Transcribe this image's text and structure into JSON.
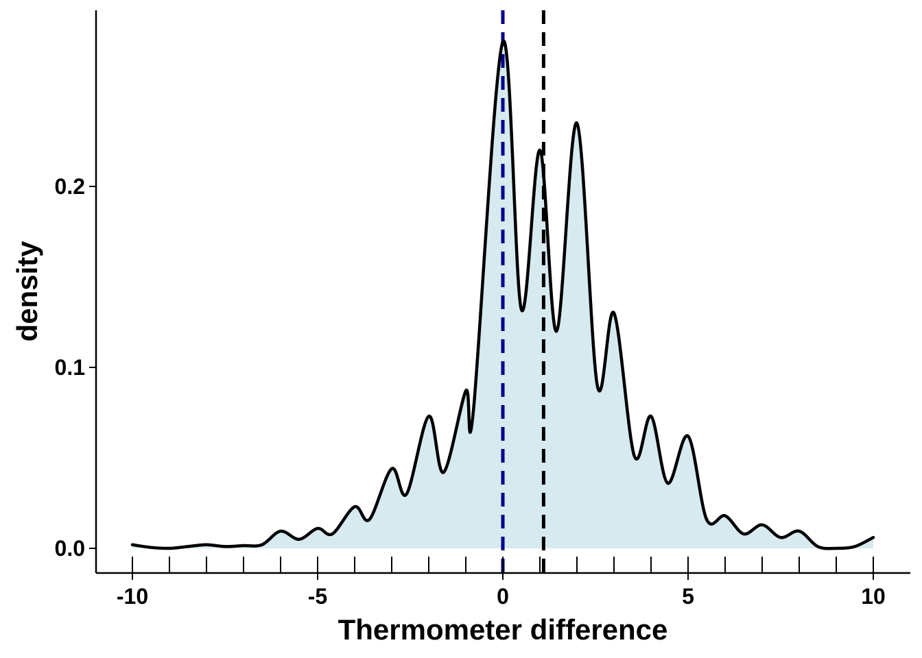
{
  "chart_data": {
    "type": "area",
    "title": "",
    "xlabel": "Thermometer difference",
    "ylabel": "density",
    "xlim": [
      -10,
      10
    ],
    "ylim": [
      0,
      0.28
    ],
    "x_ticks": [
      -10,
      -9,
      -8,
      -7,
      -6,
      -5,
      -4,
      -3,
      -2,
      -1,
      0,
      1,
      2,
      3,
      4,
      5,
      6,
      7,
      8,
      9,
      10
    ],
    "x_tick_labels": [
      {
        "value": -10,
        "label": "-10"
      },
      {
        "value": -5,
        "label": "-5"
      },
      {
        "value": 0,
        "label": "0"
      },
      {
        "value": 5,
        "label": "5"
      },
      {
        "value": 10,
        "label": "10"
      }
    ],
    "y_tick_labels": [
      {
        "value": 0.0,
        "label": "0.0"
      },
      {
        "value": 0.1,
        "label": "0.1"
      },
      {
        "value": 0.2,
        "label": "0.2"
      }
    ],
    "grid": false,
    "legend": "none",
    "fill_color": "#d6eaf0",
    "line_color": "#000000",
    "series": [
      {
        "x": [
          -10,
          -9.5,
          -9,
          -8.5,
          -8,
          -7.5,
          -7,
          -6.5,
          -6,
          -5.5,
          -5,
          -4.6,
          -4,
          -3.6,
          -3,
          -2.6,
          -2,
          -1.6,
          -1,
          -0.8,
          0,
          0.5,
          1,
          1.45,
          2,
          2.55,
          3,
          3.55,
          4,
          4.45,
          5,
          5.5,
          6,
          6.5,
          7,
          7.5,
          8,
          8.5,
          9,
          9.5,
          10
        ],
        "y": [
          0.002,
          0.0005,
          0.0,
          0.001,
          0.002,
          0.001,
          0.0015,
          0.002,
          0.0095,
          0.005,
          0.011,
          0.008,
          0.023,
          0.016,
          0.044,
          0.03,
          0.073,
          0.042,
          0.087,
          0.075,
          0.28,
          0.132,
          0.22,
          0.12,
          0.235,
          0.09,
          0.13,
          0.051,
          0.073,
          0.036,
          0.062,
          0.016,
          0.018,
          0.008,
          0.013,
          0.006,
          0.0095,
          0.001,
          0.0,
          0.001,
          0.006
        ]
      }
    ],
    "reference_lines": [
      {
        "x": 0,
        "color": "#00008b",
        "style": "dashed"
      },
      {
        "x": 1.1,
        "color": "#000000",
        "style": "dashed"
      }
    ]
  }
}
